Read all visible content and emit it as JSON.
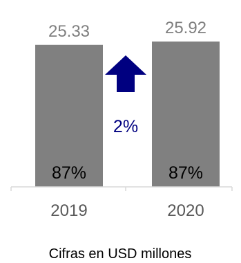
{
  "chart_data": {
    "type": "bar",
    "categories": [
      "2019",
      "2020"
    ],
    "values": [
      25.33,
      25.92
    ],
    "value_labels": [
      "25.33",
      "25.92"
    ],
    "bar_inner_labels": [
      "87%",
      "87%"
    ],
    "ylim": [
      0,
      25.92
    ],
    "grid": false,
    "legend": "none",
    "change": {
      "label": "2%",
      "direction": "up",
      "icon": "up-arrow-icon"
    },
    "caption": "Cifras en USD millones"
  },
  "colors": {
    "bar": "#808080",
    "value_label": "#7f7f7f",
    "tick_label": "#595959",
    "axis": "#d9d9d9",
    "arrow": "#000080",
    "change_label": "#000080",
    "inner_label": "#000000"
  }
}
